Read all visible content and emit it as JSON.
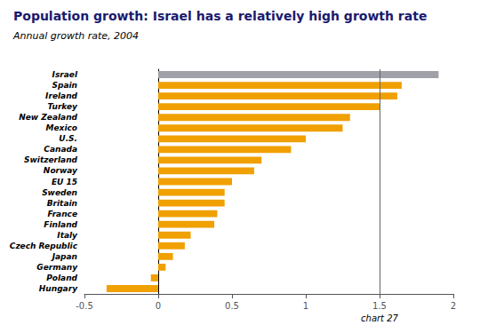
{
  "chart_data": {
    "type": "bar",
    "orientation": "horizontal",
    "title": "Population growth: Israel has a relatively high growth rate",
    "subtitle": "Annual growth rate, 2004",
    "categories": [
      "Israel",
      "Spain",
      "Ireland",
      "Turkey",
      "New Zealand",
      "Mexico",
      "U.S.",
      "Canada",
      "Switzerland",
      "Norway",
      "EU 15",
      "Sweden",
      "Britain",
      "France",
      "Finland",
      "Italy",
      "Czech Republic",
      "Japan",
      "Germany",
      "Poland",
      "Hungary"
    ],
    "values": [
      1.9,
      1.65,
      1.62,
      1.5,
      1.3,
      1.25,
      1.0,
      0.9,
      0.7,
      0.65,
      0.5,
      0.45,
      0.45,
      0.4,
      0.38,
      0.22,
      0.18,
      0.1,
      0.05,
      -0.05,
      -0.35
    ],
    "colors": [
      "#a0a0a8",
      "#f0a000",
      "#f0a000",
      "#f0a000",
      "#f0a000",
      "#f0a000",
      "#f0a000",
      "#f0a000",
      "#f0a000",
      "#f0a000",
      "#f0a000",
      "#f0a000",
      "#f0a000",
      "#f0a000",
      "#f0a000",
      "#f0a000",
      "#f0a000",
      "#f0a000",
      "#f0a000",
      "#f0a000",
      "#f0a000"
    ],
    "xlim": [
      -0.5,
      2.0
    ],
    "xticks": [
      -0.5,
      0,
      0.5,
      1,
      1.5,
      2
    ],
    "vline": 1.5,
    "annotations": [
      {
        "text": "chart 27",
        "x": 1.5
      }
    ],
    "grid": false
  }
}
